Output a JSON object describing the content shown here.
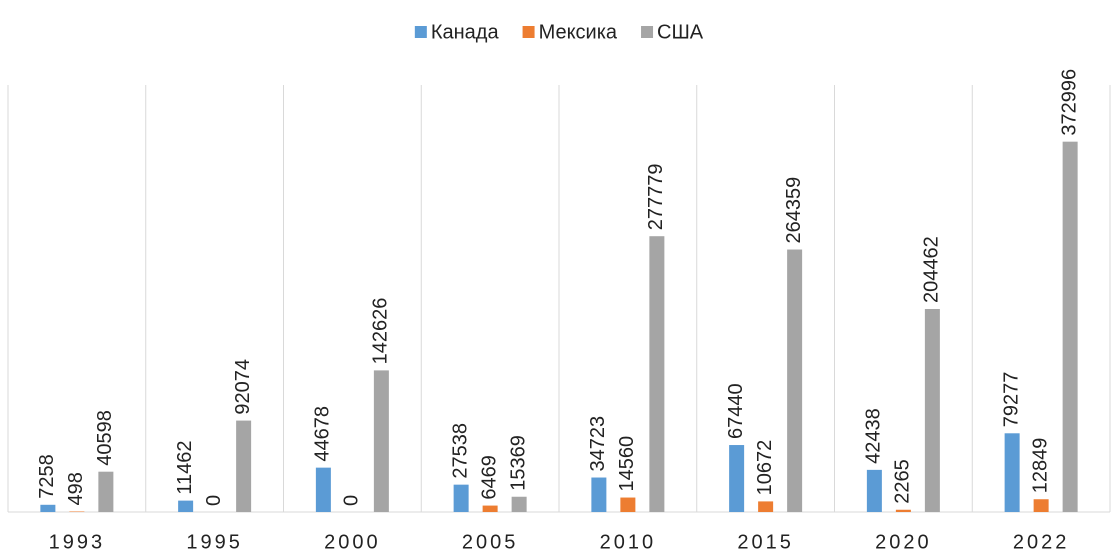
{
  "chart_data": {
    "type": "bar",
    "categories": [
      "1993",
      "1995",
      "2000",
      "2005",
      "2010",
      "2015",
      "2020",
      "2022"
    ],
    "series": [
      {
        "name": "Канада",
        "color": "#5b9bd5",
        "values": [
          7258,
          11462,
          44678,
          27538,
          34723,
          67440,
          42438,
          79277
        ]
      },
      {
        "name": "Мексика",
        "color": "#ed7d31",
        "values": [
          498,
          0,
          0,
          6469,
          14560,
          10672,
          2265,
          12849
        ]
      },
      {
        "name": "США",
        "color": "#a5a5a5",
        "values": [
          40598,
          92074,
          142626,
          15369,
          277779,
          264359,
          204462,
          372996
        ]
      }
    ],
    "ylim": [
      0,
      420000
    ],
    "legend": "top"
  }
}
